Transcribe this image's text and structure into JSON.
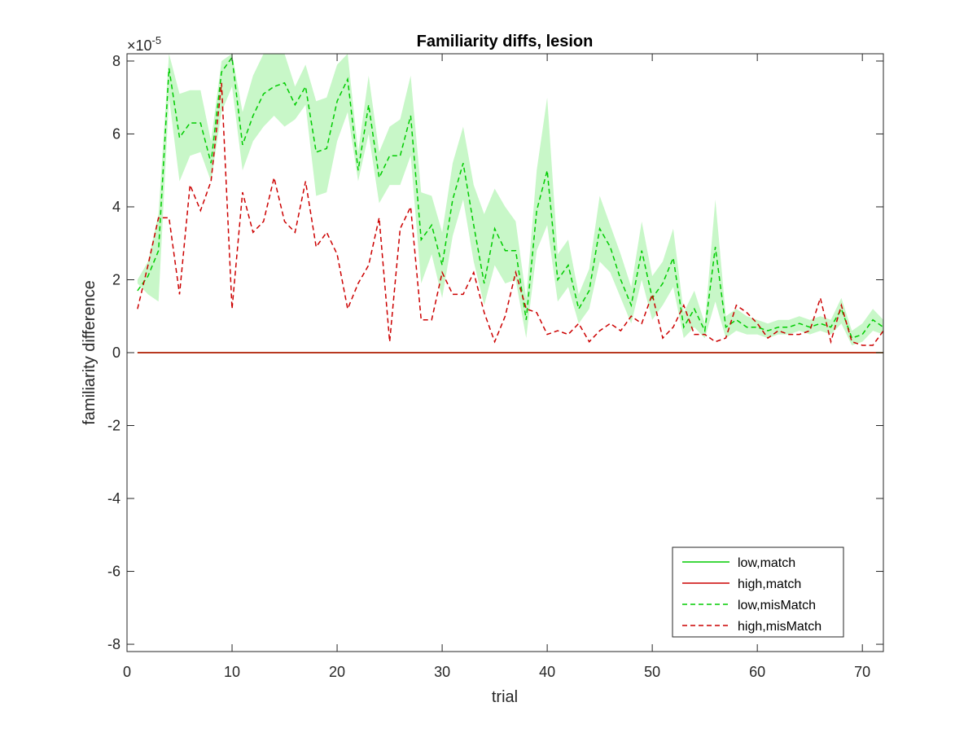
{
  "chart_data": {
    "type": "line",
    "title": "Familiarity diffs, lesion",
    "xlabel": "trial",
    "ylabel": "familiarity difference",
    "exponent_label": "×10",
    "exponent_power": "-5",
    "xlim": [
      0,
      72
    ],
    "ylim": [
      -8.2,
      8.2
    ],
    "xticks": [
      0,
      10,
      20,
      30,
      40,
      50,
      60,
      70
    ],
    "yticks": [
      -8,
      -6,
      -4,
      -2,
      0,
      2,
      4,
      6,
      8
    ],
    "xtick_labels": [
      "0",
      "10",
      "20",
      "30",
      "40",
      "50",
      "60",
      "70"
    ],
    "ytick_labels": [
      "-8",
      "-6",
      "-4",
      "-2",
      "0",
      "2",
      "4",
      "6",
      "8"
    ],
    "legend_position": "bottom-right",
    "x": [
      1,
      2,
      3,
      4,
      5,
      6,
      7,
      8,
      9,
      10,
      11,
      12,
      13,
      14,
      15,
      16,
      17,
      18,
      19,
      20,
      21,
      22,
      23,
      24,
      25,
      26,
      27,
      28,
      29,
      30,
      31,
      32,
      33,
      34,
      35,
      36,
      37,
      38,
      39,
      40,
      41,
      42,
      43,
      44,
      45,
      46,
      47,
      48,
      49,
      50,
      51,
      52,
      53,
      54,
      55,
      56,
      57,
      58,
      59,
      60,
      61,
      62,
      63,
      64,
      65,
      66,
      67,
      68,
      69,
      70,
      71,
      72
    ],
    "series": [
      {
        "name": "low,match",
        "color": "#00cc00",
        "dash": "solid",
        "values": [
          0,
          0,
          0,
          0,
          0,
          0,
          0,
          0,
          0,
          0,
          0,
          0,
          0,
          0,
          0,
          0,
          0,
          0,
          0,
          0,
          0,
          0,
          0,
          0,
          0,
          0,
          0,
          0,
          0,
          0,
          0,
          0,
          0,
          0,
          0,
          0,
          0,
          0,
          0,
          0,
          0,
          0,
          0,
          0,
          0,
          0,
          0,
          0,
          0,
          0,
          0,
          0,
          0,
          0,
          0,
          0,
          0,
          0,
          0,
          0,
          0,
          0,
          0,
          0,
          0,
          0,
          0,
          0,
          0,
          0,
          0,
          0
        ]
      },
      {
        "name": "high,match",
        "color": "#cc0000",
        "dash": "solid",
        "values": [
          0,
          0,
          0,
          0,
          0,
          0,
          0,
          0,
          0,
          0,
          0,
          0,
          0,
          0,
          0,
          0,
          0,
          0,
          0,
          0,
          0,
          0,
          0,
          0,
          0,
          0,
          0,
          0,
          0,
          0,
          0,
          0,
          0,
          0,
          0,
          0,
          0,
          0,
          0,
          0,
          0,
          0,
          0,
          0,
          0,
          0,
          0,
          0,
          0,
          0,
          0,
          0,
          0,
          0,
          0,
          0,
          0,
          0,
          0,
          0,
          0,
          0,
          0,
          0,
          0,
          0,
          0,
          0,
          0,
          0,
          0,
          0
        ]
      },
      {
        "name": "low,misMatch",
        "color": "#00cc00",
        "dash": "dashed",
        "band_color": "#c8f7c8",
        "values": [
          1.7,
          2.1,
          2.8,
          7.8,
          5.9,
          6.3,
          6.3,
          5.2,
          7.7,
          8.1,
          5.7,
          6.5,
          7.1,
          7.3,
          7.4,
          6.8,
          7.3,
          5.5,
          5.6,
          6.9,
          7.5,
          5.0,
          6.8,
          4.8,
          5.4,
          5.4,
          6.5,
          3.1,
          3.5,
          2.4,
          4.2,
          5.2,
          3.5,
          1.9,
          3.4,
          2.8,
          2.8,
          0.9,
          3.9,
          5.0,
          2.0,
          2.4,
          1.2,
          1.7,
          3.4,
          2.9,
          2.0,
          1.3,
          2.8,
          1.5,
          1.9,
          2.6,
          0.7,
          1.2,
          0.6,
          2.9,
          0.7,
          0.9,
          0.7,
          0.7,
          0.6,
          0.7,
          0.7,
          0.8,
          0.7,
          0.8,
          0.7,
          1.2,
          0.4,
          0.5,
          0.9,
          0.7
        ],
        "lower": [
          1.9,
          1.6,
          1.4,
          7.0,
          4.7,
          5.4,
          5.5,
          4.7,
          6.6,
          7.3,
          5.0,
          5.8,
          6.2,
          6.5,
          6.2,
          6.4,
          6.8,
          4.3,
          4.4,
          5.8,
          6.6,
          4.7,
          6.0,
          4.1,
          4.6,
          4.6,
          5.4,
          1.9,
          2.7,
          1.5,
          3.2,
          4.2,
          2.5,
          1.3,
          2.4,
          1.9,
          2.0,
          0.4,
          2.8,
          3.5,
          1.4,
          1.8,
          0.8,
          1.2,
          2.5,
          2.2,
          1.5,
          0.8,
          2.0,
          0.9,
          1.3,
          1.8,
          0.4,
          0.7,
          0.4,
          1.4,
          0.4,
          0.6,
          0.5,
          0.5,
          0.4,
          0.5,
          0.5,
          0.6,
          0.5,
          0.6,
          0.5,
          0.8,
          0.2,
          0.3,
          0.6,
          0.5
        ],
        "upper": [
          2.0,
          2.5,
          3.8,
          8.2,
          7.1,
          7.2,
          7.2,
          5.8,
          8.0,
          8.2,
          6.6,
          7.6,
          8.2,
          8.2,
          8.2,
          7.3,
          7.9,
          6.9,
          7.0,
          7.9,
          8.2,
          5.5,
          7.6,
          5.5,
          6.2,
          6.4,
          7.6,
          4.4,
          4.3,
          3.3,
          5.2,
          6.2,
          4.6,
          3.8,
          4.5,
          4.0,
          3.6,
          1.5,
          5.0,
          7.0,
          2.7,
          3.1,
          1.6,
          2.3,
          4.3,
          3.5,
          2.7,
          1.8,
          3.6,
          2.1,
          2.5,
          3.4,
          1.1,
          1.7,
          0.8,
          4.2,
          1.0,
          1.2,
          1.0,
          0.9,
          0.8,
          0.9,
          0.9,
          1.0,
          0.9,
          1.0,
          0.9,
          1.5,
          0.6,
          0.8,
          1.2,
          0.9
        ]
      },
      {
        "name": "high,misMatch",
        "color": "#cc0000",
        "dash": "dashed",
        "values": [
          1.2,
          2.4,
          3.7,
          3.7,
          1.6,
          4.6,
          3.9,
          4.7,
          7.4,
          1.2,
          4.4,
          3.3,
          3.6,
          4.8,
          3.6,
          3.3,
          4.7,
          2.9,
          3.3,
          2.7,
          1.2,
          1.9,
          2.4,
          3.7,
          0.3,
          3.4,
          4.0,
          0.9,
          0.9,
          2.2,
          1.6,
          1.6,
          2.2,
          1.1,
          0.3,
          1.0,
          2.2,
          1.2,
          1.1,
          0.5,
          0.6,
          0.5,
          0.8,
          0.3,
          0.6,
          0.8,
          0.6,
          1.0,
          0.8,
          1.6,
          0.4,
          0.7,
          1.3,
          0.5,
          0.5,
          0.3,
          0.4,
          1.3,
          1.1,
          0.8,
          0.4,
          0.6,
          0.5,
          0.5,
          0.6,
          1.5,
          0.3,
          1.3,
          0.3,
          0.2,
          0.2,
          0.6
        ]
      }
    ]
  }
}
